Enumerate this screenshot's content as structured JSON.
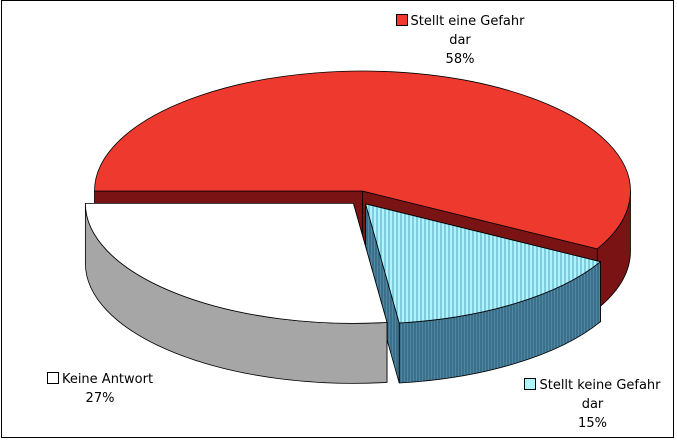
{
  "chart_data": {
    "type": "pie",
    "categories": [
      "Stellt eine Gefahr dar",
      "Stellt keine Gefahr dar",
      "Keine Antwort"
    ],
    "values": [
      58,
      15,
      27
    ],
    "value_labels": [
      "58%",
      "15%",
      "27%"
    ],
    "colors": [
      "#ee3a2e",
      "#aef4fc",
      "#ffffff"
    ]
  }
}
